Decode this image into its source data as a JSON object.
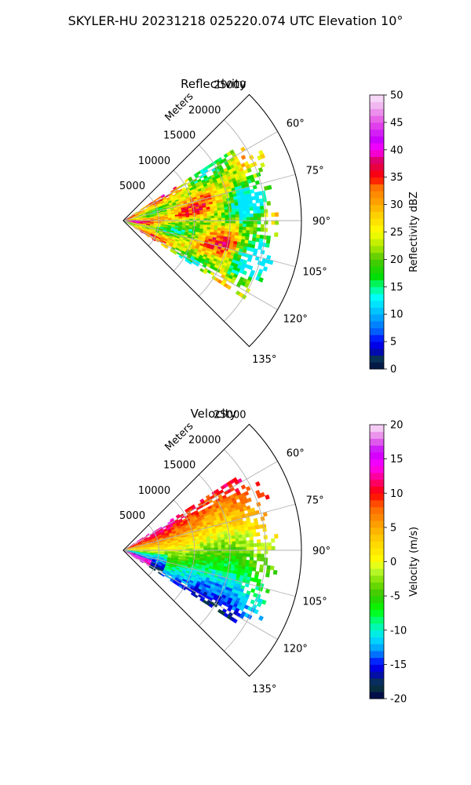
{
  "figure": {
    "suptitle": "SKYLER-HU  20231218  025220.074 UTC Elevation 10°"
  },
  "chart_data": [
    {
      "type": "heatmap",
      "projection": "polar-sector",
      "title": "Reflectivity",
      "range_axis_label": "Meters",
      "range_ticks": [
        "5000",
        "10000",
        "15000",
        "20000",
        "25000"
      ],
      "range_tick_values": [
        5000,
        10000,
        15000,
        20000,
        25000
      ],
      "rlim": [
        0,
        25000
      ],
      "azimuth_ticks": [
        "60°",
        "75°",
        "90°",
        "105°",
        "120°",
        "135°"
      ],
      "azimuth_tick_values": [
        60,
        75,
        90,
        105,
        120,
        135
      ],
      "azimuth_range_deg": [
        45,
        135
      ],
      "data_extent": {
        "azimuth_deg": [
          57,
          123
        ],
        "range_m": [
          0,
          22000
        ]
      },
      "field_summary": "mostly 20-30 dBZ with 35-40 dBZ cores; fringe of 15-20 dBZ at long range",
      "grid": true,
      "colorbar": {
        "label": "Reflectivity dBZ",
        "range": [
          0,
          50
        ],
        "ticks": [
          "0",
          "5",
          "10",
          "15",
          "20",
          "25",
          "30",
          "35",
          "40",
          "45",
          "50"
        ],
        "stops": [
          {
            "value": 0,
            "color": "#00004c"
          },
          {
            "value": 1.5,
            "color": "#0a3d3d"
          },
          {
            "value": 3.5,
            "color": "#0000c8"
          },
          {
            "value": 5,
            "color": "#0000ff"
          },
          {
            "value": 7,
            "color": "#0064ff"
          },
          {
            "value": 10,
            "color": "#00b4ff"
          },
          {
            "value": 13,
            "color": "#00ffff"
          },
          {
            "value": 15,
            "color": "#00ff80"
          },
          {
            "value": 17,
            "color": "#00dc00"
          },
          {
            "value": 20,
            "color": "#50c800"
          },
          {
            "value": 22,
            "color": "#a0e600"
          },
          {
            "value": 25,
            "color": "#ffff00"
          },
          {
            "value": 28,
            "color": "#ffd200"
          },
          {
            "value": 30,
            "color": "#ffaa00"
          },
          {
            "value": 33,
            "color": "#ff7800"
          },
          {
            "value": 35,
            "color": "#ff0000"
          },
          {
            "value": 38,
            "color": "#dc0064"
          },
          {
            "value": 40,
            "color": "#ff00ff"
          },
          {
            "value": 42,
            "color": "#c800ff"
          },
          {
            "value": 45,
            "color": "#e650e6"
          },
          {
            "value": 48,
            "color": "#f0b4f0"
          },
          {
            "value": 50,
            "color": "#fae6fa"
          }
        ]
      }
    },
    {
      "type": "heatmap",
      "projection": "polar-sector",
      "title": "Velocity",
      "range_axis_label": "Meters",
      "range_ticks": [
        "5000",
        "10000",
        "15000",
        "20000",
        "25000"
      ],
      "range_tick_values": [
        5000,
        10000,
        15000,
        20000,
        25000
      ],
      "rlim": [
        0,
        25000
      ],
      "azimuth_ticks": [
        "60°",
        "75°",
        "90°",
        "105°",
        "120°",
        "135°"
      ],
      "azimuth_tick_values": [
        60,
        75,
        90,
        105,
        120,
        135
      ],
      "azimuth_range_deg": [
        45,
        135
      ],
      "data_extent": {
        "azimuth_deg": [
          57,
          123
        ],
        "range_m": [
          0,
          22000
        ]
      },
      "field_summary": "positive 10-20 m/s toward upper edge, near 0 m/s across middle, -5 to -15 m/s in lower half",
      "grid": true,
      "colorbar": {
        "label": "Velocity (m/s)",
        "range": [
          -20,
          20
        ],
        "ticks": [
          "-20",
          "-15",
          "-10",
          "-5",
          "0",
          "5",
          "10",
          "15",
          "20"
        ],
        "stops": [
          {
            "value": -20,
            "color": "#00004c"
          },
          {
            "value": -18,
            "color": "#0a3d3d"
          },
          {
            "value": -16,
            "color": "#0000c8"
          },
          {
            "value": -15,
            "color": "#0000ff"
          },
          {
            "value": -13,
            "color": "#0096ff"
          },
          {
            "value": -11,
            "color": "#00e6ff"
          },
          {
            "value": -9,
            "color": "#00ff96"
          },
          {
            "value": -7,
            "color": "#00ff00"
          },
          {
            "value": -5,
            "color": "#32c800"
          },
          {
            "value": -3,
            "color": "#78dc00"
          },
          {
            "value": -1,
            "color": "#c8ff32"
          },
          {
            "value": 0,
            "color": "#ffff00"
          },
          {
            "value": 3,
            "color": "#ffd200"
          },
          {
            "value": 5,
            "color": "#ffaa00"
          },
          {
            "value": 8,
            "color": "#ff6400"
          },
          {
            "value": 10,
            "color": "#ff0000"
          },
          {
            "value": 12,
            "color": "#ff0080"
          },
          {
            "value": 14,
            "color": "#ff00ff"
          },
          {
            "value": 16,
            "color": "#c800ff"
          },
          {
            "value": 18,
            "color": "#e678e6"
          },
          {
            "value": 20,
            "color": "#fae6fa"
          }
        ]
      }
    }
  ]
}
